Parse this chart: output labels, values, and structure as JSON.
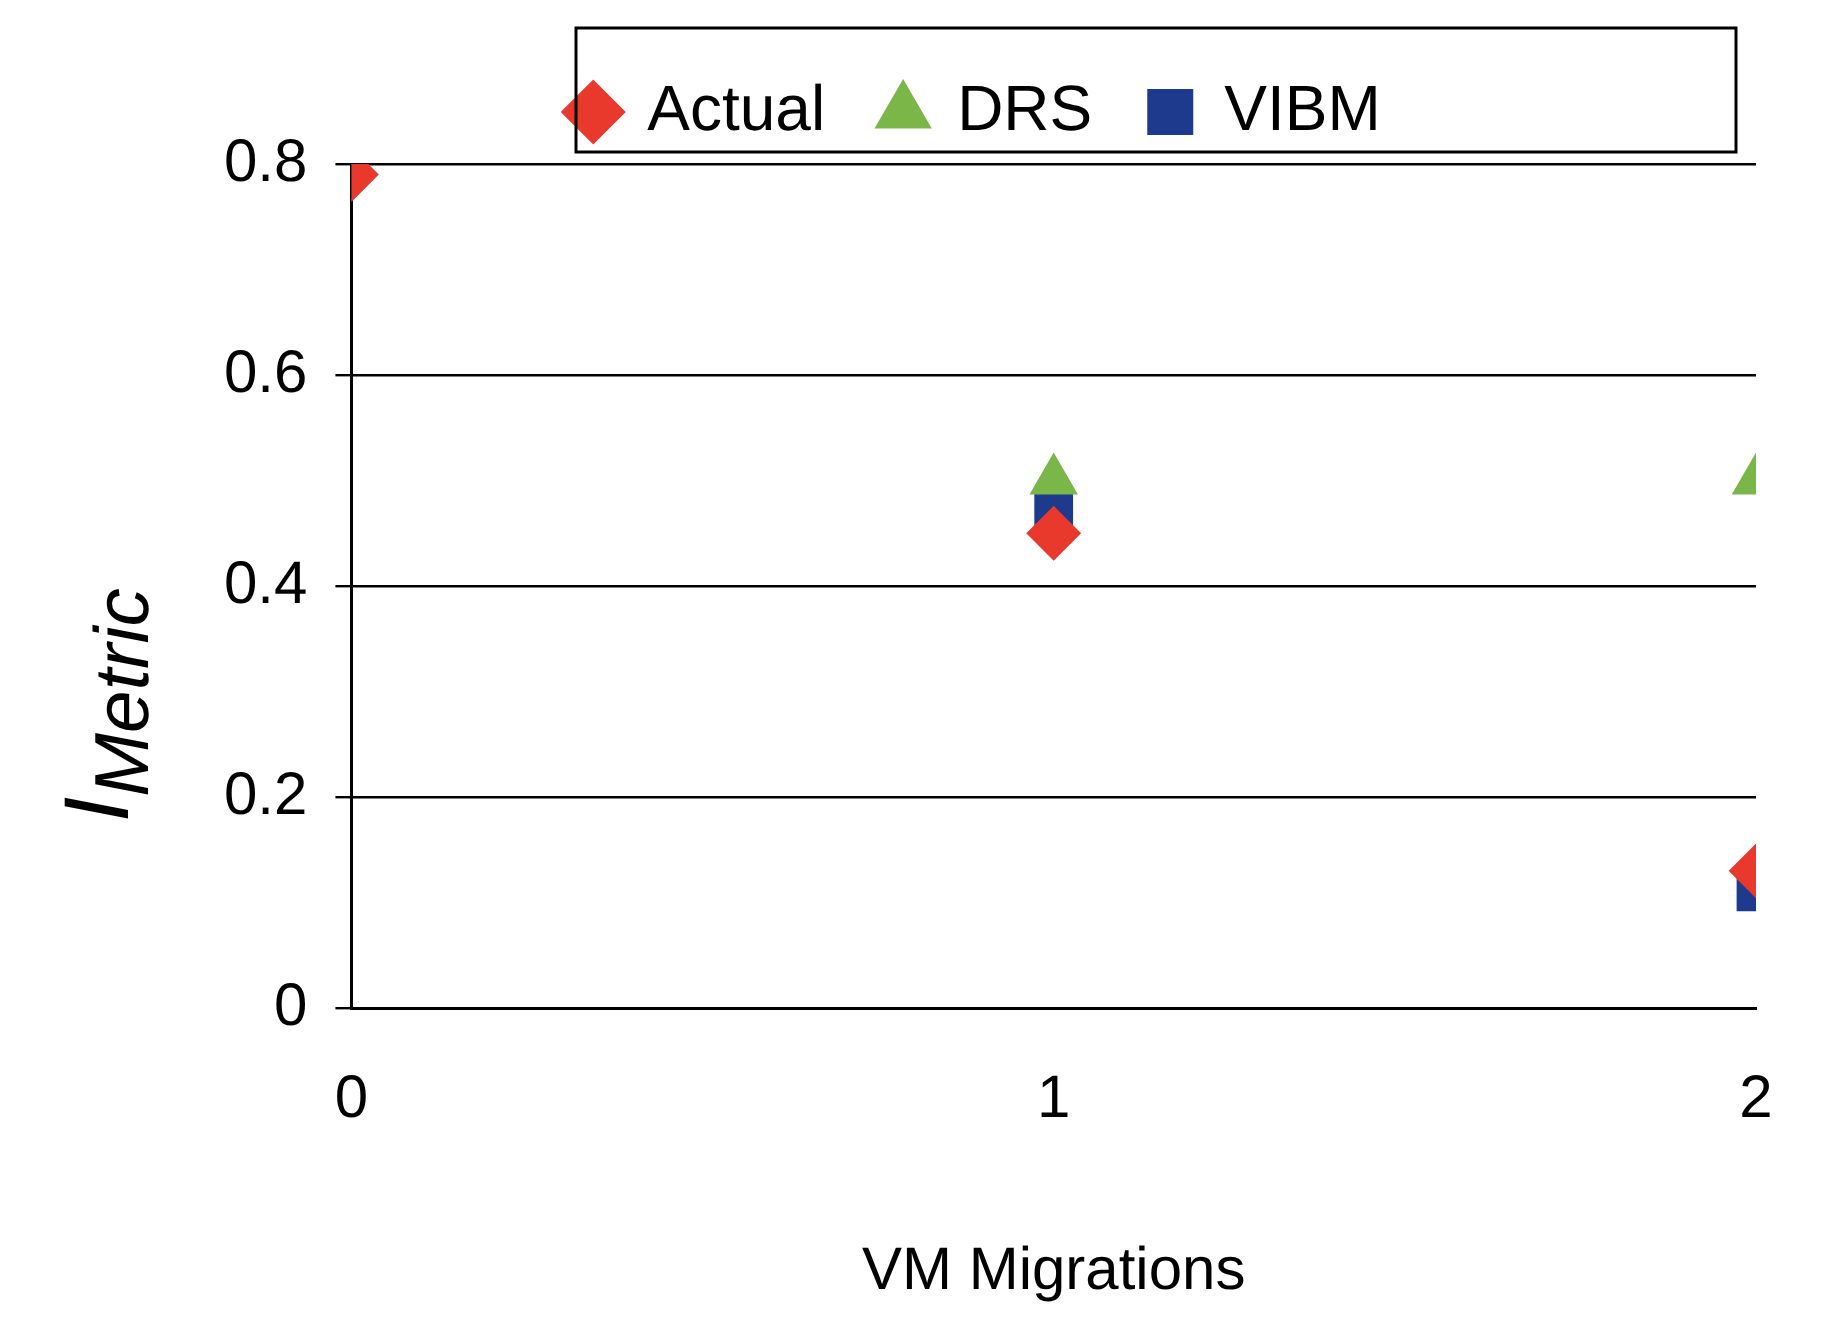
{
  "chart_data": {
    "type": "scatter",
    "xlabel": "VM Migrations",
    "ylabel": "I$_{Metric}$",
    "x": [
      0,
      1,
      2
    ],
    "xlim": [
      0,
      2
    ],
    "xticks": [
      0,
      1,
      2
    ],
    "ylim": [
      0,
      0.8
    ],
    "yticks": [
      0,
      0.2,
      0.4,
      0.6,
      0.8
    ],
    "grid": "y",
    "legend": "top",
    "series": [
      {
        "name": "Actual",
        "color": "#e8392c",
        "marker": "diamond",
        "values": [
          0.79,
          0.45,
          0.13
        ]
      },
      {
        "name": "DRS",
        "color": "#7ab648",
        "marker": "triangle",
        "values": [
          null,
          0.5,
          0.5
        ]
      },
      {
        "name": "VIBM",
        "color": "#1d3a8c",
        "marker": "square",
        "values": [
          null,
          0.47,
          0.11
        ]
      }
    ]
  }
}
